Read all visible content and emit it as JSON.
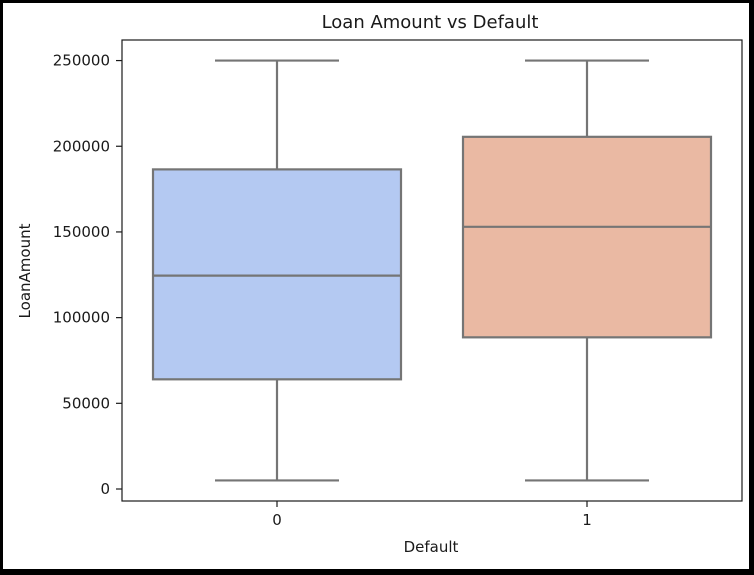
{
  "chart_data": {
    "type": "box",
    "title": "Loan Amount vs Default",
    "xlabel": "Default",
    "ylabel": "LoanAmount",
    "categories": [
      "0",
      "1"
    ],
    "ylim": [
      -7000,
      262000
    ],
    "yticks": [
      0,
      50000,
      100000,
      150000,
      200000,
      250000
    ],
    "ytick_labels": [
      "0",
      "50000",
      "100000",
      "150000",
      "200000",
      "250000"
    ],
    "grid": false,
    "legend": "none",
    "boxes": [
      {
        "category": "0",
        "whisker_low": 5000,
        "q1": 64000,
        "median": 124500,
        "q3": 186500,
        "whisker_high": 250000,
        "color": "#b4c9f2"
      },
      {
        "category": "1",
        "whisker_low": 5000,
        "q1": 88500,
        "median": 153000,
        "q3": 205500,
        "whisker_high": 250000,
        "color": "#eab9a3"
      }
    ],
    "line_color": "#757575"
  }
}
